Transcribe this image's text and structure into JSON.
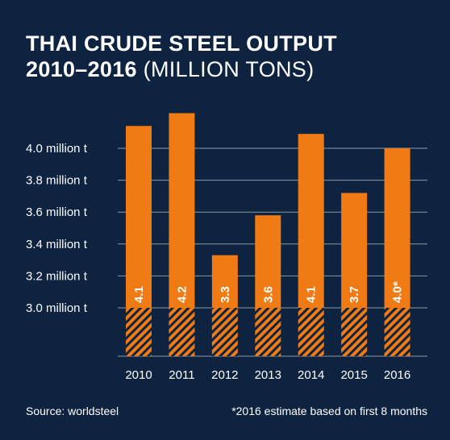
{
  "title": {
    "line1": "THAI CRUDE STEEL OUTPUT",
    "line2_bold": "2010–2016",
    "line2_light": " (MILLION TONS)"
  },
  "footer": {
    "source": "Source: worldsteel",
    "note": "*2016 estimate based on first 8 months"
  },
  "chart_data": {
    "type": "bar",
    "categories": [
      "2010",
      "2011",
      "2012",
      "2013",
      "2014",
      "2015",
      "2016"
    ],
    "values": [
      4.14,
      4.22,
      3.33,
      3.58,
      4.09,
      3.72,
      4.0
    ],
    "data_labels": [
      "4.1",
      "4.2",
      "3.3",
      "3.6",
      "4.1",
      "3.7",
      "4.0*"
    ],
    "y_ticks": [
      3.0,
      3.2,
      3.4,
      3.6,
      3.8,
      4.0
    ],
    "y_tick_labels": [
      "3.0 million t",
      "3.2 million t",
      "3.4 million t",
      "3.6 million t",
      "3.8 million t",
      "4.0 million t"
    ],
    "ylim": [
      2.7,
      4.3
    ],
    "axis_break_below": 3.0,
    "grid": true,
    "colors": {
      "bar": "#f07b15",
      "background": "#0d2340",
      "grid": "#8a97a8",
      "hatch": "#0d2340"
    }
  }
}
